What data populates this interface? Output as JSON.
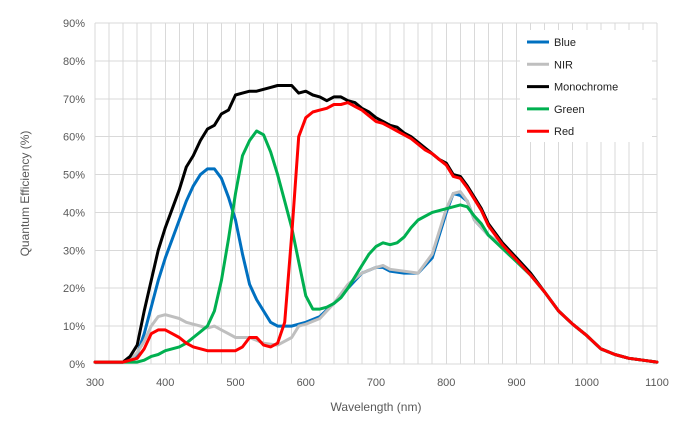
{
  "chart_data": {
    "type": "line",
    "title": "",
    "xlabel": "Wavelength (nm)",
    "ylabel": "Quantum Efficiency (%)",
    "xlim": [
      300,
      1100
    ],
    "ylim": [
      0,
      90
    ],
    "x_ticks": [
      300,
      400,
      500,
      600,
      700,
      800,
      900,
      1000,
      1100
    ],
    "x_tick_labels": [
      "300",
      "400",
      "500",
      "600",
      "700",
      "800",
      "900",
      "1000",
      "1100"
    ],
    "y_ticks": [
      0,
      10,
      20,
      30,
      40,
      50,
      60,
      70,
      80,
      90
    ],
    "y_tick_labels": [
      "0%",
      "10%",
      "20%",
      "30%",
      "40%",
      "50%",
      "60%",
      "70%",
      "80%",
      "90%"
    ],
    "grid": true,
    "legend_position": "top-right",
    "series": [
      {
        "name": "Blue",
        "color": "#0070c0",
        "points": [
          [
            300,
            0.5
          ],
          [
            320,
            0.5
          ],
          [
            340,
            0.5
          ],
          [
            350,
            1
          ],
          [
            360,
            2.5
          ],
          [
            370,
            8
          ],
          [
            380,
            15
          ],
          [
            390,
            22
          ],
          [
            400,
            28
          ],
          [
            410,
            33
          ],
          [
            420,
            38
          ],
          [
            430,
            43
          ],
          [
            440,
            47
          ],
          [
            450,
            50
          ],
          [
            460,
            51.5
          ],
          [
            470,
            51.5
          ],
          [
            480,
            49
          ],
          [
            490,
            44
          ],
          [
            500,
            38
          ],
          [
            510,
            29
          ],
          [
            520,
            21
          ],
          [
            530,
            17
          ],
          [
            540,
            14
          ],
          [
            550,
            11
          ],
          [
            560,
            10
          ],
          [
            580,
            10
          ],
          [
            600,
            11
          ],
          [
            620,
            12.5
          ],
          [
            640,
            16
          ],
          [
            660,
            20
          ],
          [
            680,
            24
          ],
          [
            700,
            25.5
          ],
          [
            710,
            25.5
          ],
          [
            720,
            24.5
          ],
          [
            740,
            24
          ],
          [
            760,
            24
          ],
          [
            780,
            28
          ],
          [
            800,
            40
          ],
          [
            810,
            45
          ],
          [
            820,
            44.5
          ],
          [
            830,
            43
          ],
          [
            840,
            38
          ],
          [
            850,
            36
          ],
          [
            860,
            34
          ],
          [
            880,
            31.5
          ],
          [
            900,
            28
          ],
          [
            920,
            24
          ],
          [
            940,
            19
          ],
          [
            960,
            14
          ],
          [
            980,
            10.5
          ],
          [
            1000,
            7.5
          ],
          [
            1020,
            4
          ],
          [
            1040,
            2.5
          ],
          [
            1060,
            1.5
          ],
          [
            1080,
            1
          ],
          [
            1100,
            0.5
          ]
        ]
      },
      {
        "name": "NIR",
        "color": "#bfbfbf",
        "points": [
          [
            300,
            0.5
          ],
          [
            340,
            0.5
          ],
          [
            350,
            1
          ],
          [
            360,
            3
          ],
          [
            370,
            6
          ],
          [
            380,
            10
          ],
          [
            390,
            12.5
          ],
          [
            400,
            13
          ],
          [
            410,
            12.5
          ],
          [
            420,
            12
          ],
          [
            430,
            11
          ],
          [
            440,
            10.5
          ],
          [
            450,
            10
          ],
          [
            460,
            9.5
          ],
          [
            470,
            10
          ],
          [
            480,
            9
          ],
          [
            490,
            8
          ],
          [
            500,
            7
          ],
          [
            520,
            7
          ],
          [
            540,
            5.5
          ],
          [
            560,
            5
          ],
          [
            580,
            7
          ],
          [
            590,
            10
          ],
          [
            600,
            10.5
          ],
          [
            620,
            12
          ],
          [
            640,
            16
          ],
          [
            660,
            21
          ],
          [
            680,
            24
          ],
          [
            700,
            25.5
          ],
          [
            710,
            26
          ],
          [
            720,
            25
          ],
          [
            740,
            24.5
          ],
          [
            760,
            24
          ],
          [
            780,
            29
          ],
          [
            800,
            41
          ],
          [
            810,
            45
          ],
          [
            820,
            45.5
          ],
          [
            830,
            43
          ],
          [
            840,
            38
          ],
          [
            850,
            36
          ],
          [
            860,
            34
          ],
          [
            880,
            31.5
          ],
          [
            900,
            28
          ],
          [
            920,
            24
          ],
          [
            940,
            19
          ],
          [
            960,
            14
          ],
          [
            980,
            10.5
          ],
          [
            1000,
            7.5
          ],
          [
            1020,
            4
          ],
          [
            1040,
            2.5
          ],
          [
            1060,
            1.5
          ],
          [
            1080,
            1
          ],
          [
            1100,
            0.5
          ]
        ]
      },
      {
        "name": "Monochrome",
        "color": "#000000",
        "points": [
          [
            300,
            0.5
          ],
          [
            320,
            0.5
          ],
          [
            340,
            0.5
          ],
          [
            350,
            2
          ],
          [
            360,
            5
          ],
          [
            370,
            14
          ],
          [
            380,
            22
          ],
          [
            390,
            30
          ],
          [
            400,
            36
          ],
          [
            410,
            41
          ],
          [
            420,
            46
          ],
          [
            430,
            52
          ],
          [
            440,
            55
          ],
          [
            450,
            59
          ],
          [
            460,
            62
          ],
          [
            470,
            63
          ],
          [
            480,
            66
          ],
          [
            490,
            67
          ],
          [
            500,
            71
          ],
          [
            510,
            71.5
          ],
          [
            520,
            72
          ],
          [
            530,
            72
          ],
          [
            540,
            72.5
          ],
          [
            550,
            73
          ],
          [
            560,
            73.5
          ],
          [
            570,
            73.5
          ],
          [
            580,
            73.5
          ],
          [
            590,
            71.5
          ],
          [
            600,
            72
          ],
          [
            610,
            71
          ],
          [
            620,
            70.5
          ],
          [
            630,
            69.5
          ],
          [
            640,
            70.5
          ],
          [
            650,
            70.5
          ],
          [
            660,
            69.5
          ],
          [
            670,
            69
          ],
          [
            680,
            67.5
          ],
          [
            690,
            66.5
          ],
          [
            700,
            65
          ],
          [
            710,
            64
          ],
          [
            720,
            63
          ],
          [
            730,
            62.5
          ],
          [
            740,
            61
          ],
          [
            750,
            60
          ],
          [
            760,
            58.5
          ],
          [
            770,
            57
          ],
          [
            780,
            55.5
          ],
          [
            790,
            54
          ],
          [
            800,
            53
          ],
          [
            810,
            50
          ],
          [
            820,
            49.5
          ],
          [
            830,
            47
          ],
          [
            840,
            44
          ],
          [
            850,
            41
          ],
          [
            860,
            37
          ],
          [
            880,
            32
          ],
          [
            900,
            28
          ],
          [
            920,
            24
          ],
          [
            940,
            19
          ],
          [
            960,
            14
          ],
          [
            980,
            10.5
          ],
          [
            1000,
            7.5
          ],
          [
            1020,
            4
          ],
          [
            1040,
            2.5
          ],
          [
            1060,
            1.5
          ],
          [
            1080,
            1
          ],
          [
            1100,
            0.5
          ]
        ]
      },
      {
        "name": "Green",
        "color": "#00b050",
        "points": [
          [
            300,
            0.5
          ],
          [
            320,
            0.5
          ],
          [
            340,
            0.5
          ],
          [
            350,
            0.5
          ],
          [
            360,
            0.5
          ],
          [
            370,
            1
          ],
          [
            380,
            2
          ],
          [
            390,
            2.5
          ],
          [
            400,
            3.5
          ],
          [
            410,
            4
          ],
          [
            420,
            4.5
          ],
          [
            430,
            5.5
          ],
          [
            440,
            7
          ],
          [
            450,
            8.5
          ],
          [
            460,
            10
          ],
          [
            470,
            14
          ],
          [
            480,
            22
          ],
          [
            490,
            33
          ],
          [
            500,
            45
          ],
          [
            510,
            55
          ],
          [
            520,
            59
          ],
          [
            530,
            61.5
          ],
          [
            540,
            60.5
          ],
          [
            550,
            56
          ],
          [
            560,
            50
          ],
          [
            570,
            43
          ],
          [
            580,
            36
          ],
          [
            590,
            27
          ],
          [
            600,
            18
          ],
          [
            610,
            14.5
          ],
          [
            620,
            14.5
          ],
          [
            630,
            15
          ],
          [
            640,
            16
          ],
          [
            650,
            17.5
          ],
          [
            660,
            20
          ],
          [
            680,
            26
          ],
          [
            690,
            29
          ],
          [
            700,
            31
          ],
          [
            710,
            32
          ],
          [
            720,
            31.5
          ],
          [
            730,
            32
          ],
          [
            740,
            33.5
          ],
          [
            750,
            36
          ],
          [
            760,
            38
          ],
          [
            780,
            40
          ],
          [
            800,
            41
          ],
          [
            810,
            41.5
          ],
          [
            820,
            42
          ],
          [
            830,
            41.5
          ],
          [
            840,
            39
          ],
          [
            850,
            37
          ],
          [
            860,
            34
          ],
          [
            880,
            30.5
          ],
          [
            900,
            27
          ],
          [
            920,
            23.5
          ],
          [
            940,
            19
          ],
          [
            960,
            14
          ],
          [
            980,
            10.5
          ],
          [
            1000,
            7.5
          ],
          [
            1020,
            4
          ],
          [
            1040,
            2.5
          ],
          [
            1060,
            1.5
          ],
          [
            1080,
            1
          ],
          [
            1100,
            0.5
          ]
        ]
      },
      {
        "name": "Red",
        "color": "#ff0000",
        "points": [
          [
            300,
            0.5
          ],
          [
            320,
            0.5
          ],
          [
            340,
            0.5
          ],
          [
            350,
            1
          ],
          [
            360,
            1.5
          ],
          [
            370,
            4
          ],
          [
            380,
            8
          ],
          [
            390,
            9
          ],
          [
            400,
            9
          ],
          [
            410,
            8
          ],
          [
            420,
            7
          ],
          [
            430,
            5.5
          ],
          [
            440,
            4.5
          ],
          [
            450,
            4
          ],
          [
            460,
            3.5
          ],
          [
            480,
            3.5
          ],
          [
            490,
            3.5
          ],
          [
            500,
            3.5
          ],
          [
            510,
            4.5
          ],
          [
            520,
            7
          ],
          [
            530,
            7
          ],
          [
            540,
            5
          ],
          [
            550,
            4.5
          ],
          [
            560,
            5.5
          ],
          [
            570,
            11
          ],
          [
            580,
            34
          ],
          [
            590,
            60
          ],
          [
            600,
            65
          ],
          [
            610,
            66.5
          ],
          [
            620,
            67
          ],
          [
            630,
            67.5
          ],
          [
            640,
            68.5
          ],
          [
            650,
            68.5
          ],
          [
            660,
            69
          ],
          [
            670,
            68
          ],
          [
            680,
            67
          ],
          [
            690,
            65.5
          ],
          [
            700,
            64
          ],
          [
            710,
            63.5
          ],
          [
            720,
            62.5
          ],
          [
            730,
            61.5
          ],
          [
            740,
            60.5
          ],
          [
            750,
            59.5
          ],
          [
            760,
            58
          ],
          [
            770,
            56.5
          ],
          [
            780,
            55.5
          ],
          [
            790,
            54
          ],
          [
            800,
            52.5
          ],
          [
            810,
            49.5
          ],
          [
            820,
            49
          ],
          [
            830,
            46.5
          ],
          [
            840,
            43.5
          ],
          [
            850,
            40.5
          ],
          [
            860,
            36.5
          ],
          [
            880,
            31.5
          ],
          [
            900,
            27.5
          ],
          [
            920,
            23.5
          ],
          [
            940,
            19
          ],
          [
            960,
            14
          ],
          [
            980,
            10.5
          ],
          [
            1000,
            7.5
          ],
          [
            1020,
            4
          ],
          [
            1040,
            2.5
          ],
          [
            1060,
            1.5
          ],
          [
            1080,
            1
          ],
          [
            1100,
            0.5
          ]
        ]
      }
    ]
  }
}
